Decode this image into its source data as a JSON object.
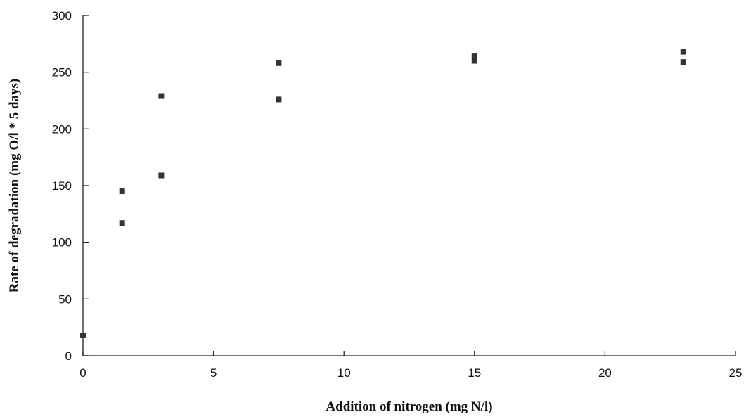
{
  "chart_data": {
    "type": "scatter",
    "title": "",
    "xlabel": "Addition of nitrogen (mg N/l)",
    "ylabel": "Rate of degradation (mg O/l * 5 days)",
    "xlim": [
      0,
      25
    ],
    "ylim": [
      0,
      300
    ],
    "x_ticks": [
      0,
      5,
      10,
      15,
      20,
      25
    ],
    "y_ticks": [
      0,
      50,
      100,
      150,
      200,
      250,
      300
    ],
    "x_tick_labels": [
      "0",
      "5",
      "10",
      "15",
      "20",
      "25"
    ],
    "y_tick_labels": [
      "0",
      "50",
      "100",
      "150",
      "200",
      "250",
      "300"
    ],
    "grid": false,
    "legend": "none",
    "marker": "square",
    "marker_color": "#333333",
    "series": [
      {
        "x": [
          0,
          1.5,
          1.5,
          3,
          3,
          7.5,
          7.5,
          15,
          15,
          23,
          23
        ],
        "y": [
          18,
          117,
          145,
          159,
          229,
          226,
          258,
          260,
          264,
          259,
          268
        ]
      }
    ]
  }
}
